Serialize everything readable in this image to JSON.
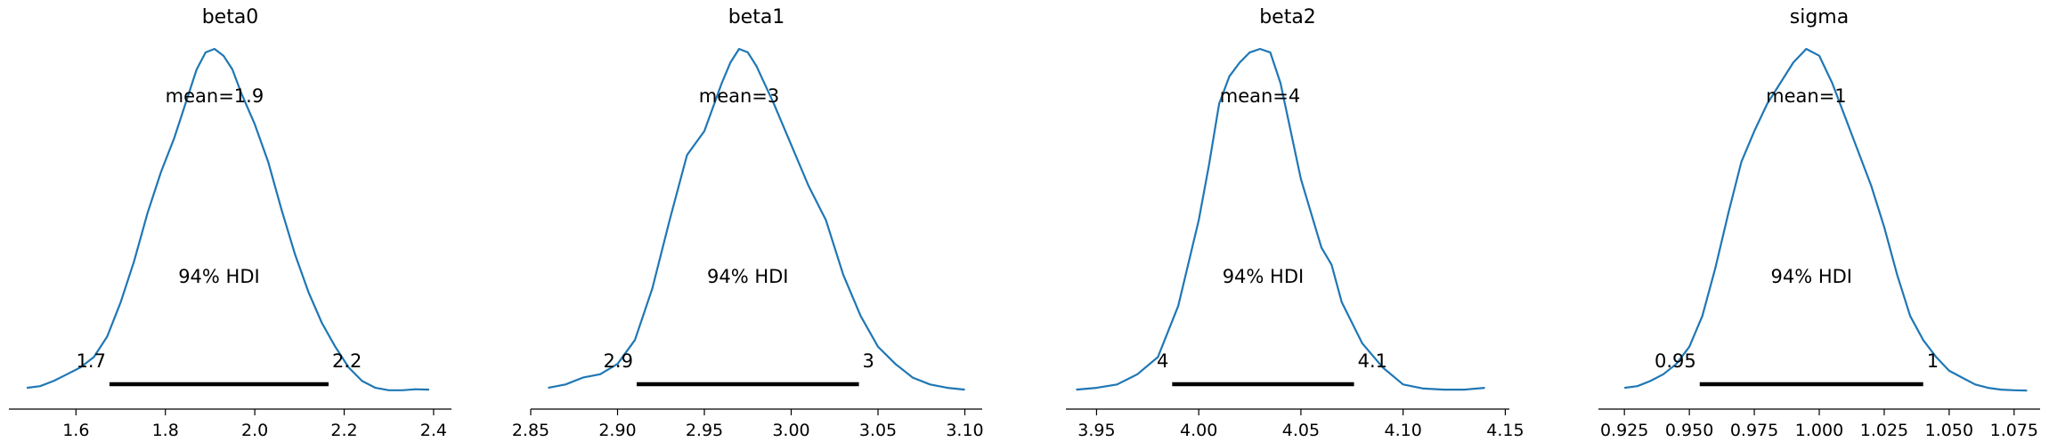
{
  "chart_data": [
    {
      "type": "line",
      "title": "beta0",
      "mean_label": "mean=1.9",
      "hdi_label": "94% HDI",
      "hdi": [
        1.675,
        2.165
      ],
      "hdi_low_label": "1.7",
      "hdi_high_label": "2.2",
      "xlim": [
        1.45,
        2.44
      ],
      "xticks": [
        1.6,
        1.8,
        2.0,
        2.2,
        2.4
      ],
      "xtick_labels": [
        "1.6",
        "1.8",
        "2.0",
        "2.2",
        "2.4"
      ],
      "color": "#1f77b4",
      "density": {
        "x": [
          1.49,
          1.52,
          1.55,
          1.58,
          1.61,
          1.64,
          1.67,
          1.7,
          1.73,
          1.76,
          1.79,
          1.82,
          1.85,
          1.87,
          1.89,
          1.91,
          1.93,
          1.95,
          1.97,
          2.0,
          2.03,
          2.06,
          2.09,
          2.12,
          2.15,
          2.18,
          2.21,
          2.24,
          2.27,
          2.3,
          2.33,
          2.36,
          2.39
        ],
        "y": [
          0.01,
          0.015,
          0.03,
          0.05,
          0.07,
          0.1,
          0.16,
          0.26,
          0.38,
          0.52,
          0.64,
          0.74,
          0.86,
          0.94,
          0.99,
          1.0,
          0.98,
          0.94,
          0.87,
          0.78,
          0.67,
          0.53,
          0.4,
          0.29,
          0.2,
          0.13,
          0.07,
          0.03,
          0.01,
          0.003,
          0.003,
          0.006,
          0.005
        ]
      }
    },
    {
      "type": "line",
      "title": "beta1",
      "mean_label": "mean=3",
      "hdi_label": "94% HDI",
      "hdi": [
        2.911,
        3.039
      ],
      "hdi_low_label": "2.9",
      "hdi_high_label": "3",
      "xlim": [
        2.85,
        3.11
      ],
      "xticks": [
        2.85,
        2.9,
        2.95,
        3.0,
        3.05,
        3.1
      ],
      "xtick_labels": [
        "2.85",
        "2.90",
        "2.95",
        "3.00",
        "3.05",
        "3.10"
      ],
      "color": "#1f77b4",
      "density": {
        "x": [
          2.86,
          2.87,
          2.88,
          2.89,
          2.9,
          2.91,
          2.92,
          2.93,
          2.94,
          2.95,
          2.96,
          2.965,
          2.97,
          2.975,
          2.98,
          2.99,
          3.0,
          3.01,
          3.02,
          3.03,
          3.04,
          3.05,
          3.06,
          3.07,
          3.08,
          3.09,
          3.1
        ],
        "y": [
          0.01,
          0.02,
          0.04,
          0.05,
          0.08,
          0.15,
          0.3,
          0.5,
          0.69,
          0.76,
          0.9,
          0.96,
          1.0,
          0.99,
          0.95,
          0.84,
          0.72,
          0.6,
          0.5,
          0.34,
          0.22,
          0.13,
          0.08,
          0.04,
          0.02,
          0.01,
          0.005
        ]
      }
    },
    {
      "type": "line",
      "title": "beta2",
      "mean_label": "mean=4",
      "hdi_label": "94% HDI",
      "hdi": [
        3.987,
        4.076
      ],
      "hdi_low_label": "4",
      "hdi_high_label": "4.1",
      "xlim": [
        3.935,
        4.152
      ],
      "xticks": [
        3.95,
        4.0,
        4.05,
        4.1,
        4.15
      ],
      "xtick_labels": [
        "3.95",
        "4.00",
        "4.05",
        "4.10",
        "4.15"
      ],
      "color": "#1f77b4",
      "density": {
        "x": [
          3.94,
          3.95,
          3.96,
          3.97,
          3.98,
          3.99,
          4.0,
          4.005,
          4.01,
          4.015,
          4.02,
          4.025,
          4.03,
          4.035,
          4.04,
          4.05,
          4.06,
          4.065,
          4.07,
          4.08,
          4.09,
          4.1,
          4.11,
          4.12,
          4.13,
          4.14
        ],
        "y": [
          0.005,
          0.01,
          0.02,
          0.05,
          0.1,
          0.25,
          0.5,
          0.66,
          0.84,
          0.92,
          0.96,
          0.99,
          1.0,
          0.99,
          0.9,
          0.62,
          0.42,
          0.37,
          0.26,
          0.14,
          0.07,
          0.02,
          0.008,
          0.005,
          0.005,
          0.01
        ]
      }
    },
    {
      "type": "line",
      "title": "sigma",
      "mean_label": "mean=1",
      "hdi_label": "94% HDI",
      "hdi": [
        0.954,
        1.04
      ],
      "hdi_low_label": "0.95",
      "hdi_high_label": "1",
      "xlim": [
        0.915,
        1.085
      ],
      "xticks": [
        0.925,
        0.95,
        0.975,
        1.0,
        1.025,
        1.05,
        1.075
      ],
      "xtick_labels": [
        "0.925",
        "0.950",
        "0.975",
        "1.000",
        "1.025",
        "1.050",
        "1.075"
      ],
      "color": "#1f77b4",
      "density": {
        "x": [
          0.925,
          0.93,
          0.935,
          0.94,
          0.945,
          0.95,
          0.955,
          0.96,
          0.965,
          0.97,
          0.975,
          0.98,
          0.985,
          0.99,
          0.995,
          1.0,
          1.005,
          1.01,
          1.015,
          1.02,
          1.025,
          1.03,
          1.035,
          1.04,
          1.045,
          1.05,
          1.055,
          1.06,
          1.065,
          1.07,
          1.075,
          1.08
        ],
        "y": [
          0.01,
          0.015,
          0.03,
          0.05,
          0.08,
          0.13,
          0.22,
          0.36,
          0.52,
          0.67,
          0.76,
          0.84,
          0.9,
          0.96,
          1.0,
          0.98,
          0.9,
          0.8,
          0.7,
          0.6,
          0.48,
          0.34,
          0.22,
          0.15,
          0.1,
          0.06,
          0.04,
          0.02,
          0.01,
          0.005,
          0.003,
          0.002
        ]
      }
    }
  ]
}
